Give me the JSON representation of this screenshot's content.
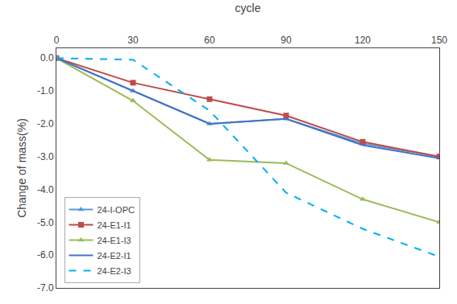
{
  "chart_data": {
    "type": "line",
    "x": [
      0,
      30,
      60,
      90,
      120,
      150
    ],
    "series": [
      {
        "name": "24-I-OPC",
        "color": "#5B9BD5",
        "marker": "triangle",
        "line_style": "solid",
        "values": [
          0.0,
          -1.0,
          -2.0,
          -1.85,
          -2.6,
          -3.0
        ]
      },
      {
        "name": "24-E1-I1",
        "color": "#BE4B48",
        "marker": "square",
        "line_style": "solid",
        "values": [
          0.0,
          -0.75,
          -1.25,
          -1.75,
          -2.55,
          -3.0
        ]
      },
      {
        "name": "24-E1-I3",
        "color": "#9BBB59",
        "marker": "triangle",
        "line_style": "solid",
        "values": [
          0.0,
          -1.3,
          -3.1,
          -3.2,
          -4.3,
          -5.0
        ]
      },
      {
        "name": "24-E2-I1",
        "color": "#4472C4",
        "marker": "none",
        "line_style": "solid",
        "values": [
          0.0,
          -1.0,
          -2.0,
          -1.85,
          -2.65,
          -3.05
        ]
      },
      {
        "name": "24-E2-I3",
        "color": "#00B0F0",
        "marker": "none",
        "line_style": "dash",
        "values": [
          0.0,
          -0.05,
          -1.6,
          -4.1,
          -5.2,
          -6.05
        ]
      }
    ],
    "x_label": "cycle",
    "y_label": "Change of mass(%)",
    "xlim": [
      0,
      150
    ],
    "ylim": [
      -7.0,
      0.3
    ],
    "xticks": [
      0,
      30,
      60,
      90,
      120,
      150
    ],
    "yticks": [
      {
        "value": 0.0,
        "label": "0.0"
      },
      {
        "value": -1.0,
        "label": "-1.0"
      },
      {
        "value": -2.0,
        "label": "-2.0"
      },
      {
        "value": -3.0,
        "label": "-3.0"
      },
      {
        "value": -4.0,
        "label": "-4.0"
      },
      {
        "value": -5.0,
        "label": "-5.0"
      },
      {
        "value": -6.0,
        "label": "-6.0"
      },
      {
        "value": -7.0,
        "label": "-7.0"
      }
    ],
    "grid": false,
    "legend": "lower left"
  }
}
